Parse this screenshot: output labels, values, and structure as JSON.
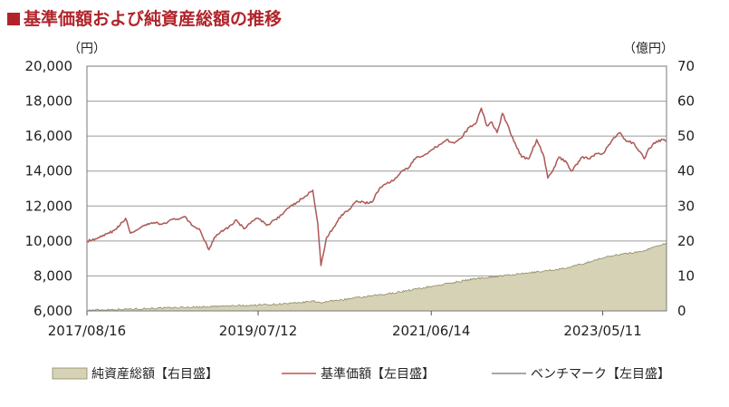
{
  "title": "基準価額および純資産総額の推移",
  "chart_data": {
    "type": "line",
    "left_unit": "（円）",
    "right_unit": "（億円）",
    "y_left": {
      "min": 6000,
      "max": 20000,
      "ticks": [
        "6,000",
        "8,000",
        "10,000",
        "12,000",
        "14,000",
        "16,000",
        "18,000",
        "20,000"
      ]
    },
    "y_right": {
      "min": 0,
      "max": 70,
      "ticks": [
        "0",
        "10",
        "20",
        "30",
        "40",
        "50",
        "60",
        "70"
      ]
    },
    "x_range": [
      "2017-08-16",
      "2024-01-25"
    ],
    "x_ticks": [
      {
        "date": "2017-08-16",
        "label": "2017/08/16"
      },
      {
        "date": "2019-07-12",
        "label": "2019/07/12"
      },
      {
        "date": "2021-06-14",
        "label": "2021/06/14"
      },
      {
        "date": "2023-05-11",
        "label": "2023/05/11"
      }
    ],
    "grid": "horizontal",
    "legend_position": "bottom",
    "series": [
      {
        "name": "純資産総額【右目盛】",
        "axis": "right",
        "kind": "area",
        "color": "#d6d2b6",
        "edge_color": "#8f8a64",
        "points": [
          [
            "2017-08-16",
            0.2
          ],
          [
            "2018-01-15",
            0.5
          ],
          [
            "2018-06-15",
            0.8
          ],
          [
            "2018-12-15",
            1.2
          ],
          [
            "2019-06-15",
            1.6
          ],
          [
            "2019-12-15",
            2.2
          ],
          [
            "2020-02-20",
            2.8
          ],
          [
            "2020-03-20",
            2.4
          ],
          [
            "2020-06-15",
            3.2
          ],
          [
            "2020-12-15",
            4.8
          ],
          [
            "2021-06-15",
            7.0
          ],
          [
            "2021-12-15",
            9.3
          ],
          [
            "2022-06-15",
            10.6
          ],
          [
            "2022-12-15",
            12.2
          ],
          [
            "2023-06-15",
            15.8
          ],
          [
            "2023-10-15",
            17.0
          ],
          [
            "2023-12-15",
            18.5
          ],
          [
            "2024-01-25",
            19.5
          ]
        ]
      },
      {
        "name": "基準価額【左目盛】",
        "axis": "left",
        "kind": "line",
        "color": "#c0504d",
        "points": [
          [
            "2017-08-16",
            10000
          ],
          [
            "2017-09-15",
            10050
          ],
          [
            "2017-10-15",
            10250
          ],
          [
            "2017-11-15",
            10450
          ],
          [
            "2017-12-15",
            10700
          ],
          [
            "2018-01-20",
            11300
          ],
          [
            "2018-02-08",
            10450
          ],
          [
            "2018-03-15",
            10700
          ],
          [
            "2018-04-15",
            10900
          ],
          [
            "2018-05-15",
            11050
          ],
          [
            "2018-06-15",
            10950
          ],
          [
            "2018-07-15",
            11150
          ],
          [
            "2018-08-15",
            11250
          ],
          [
            "2018-09-15",
            11400
          ],
          [
            "2018-10-15",
            10900
          ],
          [
            "2018-11-15",
            10700
          ],
          [
            "2018-12-24",
            9500
          ],
          [
            "2019-01-15",
            10200
          ],
          [
            "2019-02-15",
            10600
          ],
          [
            "2019-03-15",
            10800
          ],
          [
            "2019-04-15",
            11200
          ],
          [
            "2019-05-15",
            10700
          ],
          [
            "2019-06-15",
            11100
          ],
          [
            "2019-07-12",
            11300
          ],
          [
            "2019-08-15",
            10900
          ],
          [
            "2019-09-15",
            11200
          ],
          [
            "2019-10-15",
            11500
          ],
          [
            "2019-11-15",
            11900
          ],
          [
            "2019-12-15",
            12200
          ],
          [
            "2020-01-15",
            12500
          ],
          [
            "2020-02-19",
            12900
          ],
          [
            "2020-03-10",
            11000
          ],
          [
            "2020-03-23",
            8600
          ],
          [
            "2020-04-15",
            10200
          ],
          [
            "2020-05-15",
            10800
          ],
          [
            "2020-06-15",
            11500
          ],
          [
            "2020-07-15",
            11800
          ],
          [
            "2020-08-15",
            12300
          ],
          [
            "2020-09-15",
            12200
          ],
          [
            "2020-10-15",
            12200
          ],
          [
            "2020-11-15",
            13000
          ],
          [
            "2020-12-15",
            13300
          ],
          [
            "2021-01-15",
            13500
          ],
          [
            "2021-02-15",
            14000
          ],
          [
            "2021-03-15",
            14200
          ],
          [
            "2021-04-15",
            14800
          ],
          [
            "2021-05-15",
            14900
          ],
          [
            "2021-06-14",
            15200
          ],
          [
            "2021-07-15",
            15500
          ],
          [
            "2021-08-15",
            15800
          ],
          [
            "2021-09-15",
            15600
          ],
          [
            "2021-10-15",
            15900
          ],
          [
            "2021-11-15",
            16500
          ],
          [
            "2021-12-15",
            16800
          ],
          [
            "2022-01-03",
            17600
          ],
          [
            "2022-01-25",
            16600
          ],
          [
            "2022-02-15",
            16800
          ],
          [
            "2022-03-08",
            16200
          ],
          [
            "2022-03-30",
            17300
          ],
          [
            "2022-04-15",
            16800
          ],
          [
            "2022-05-15",
            15700
          ],
          [
            "2022-06-16",
            14800
          ],
          [
            "2022-07-15",
            14700
          ],
          [
            "2022-08-16",
            15800
          ],
          [
            "2022-09-15",
            14800
          ],
          [
            "2022-09-30",
            13600
          ],
          [
            "2022-10-15",
            13900
          ],
          [
            "2022-11-15",
            14800
          ],
          [
            "2022-12-15",
            14500
          ],
          [
            "2023-01-05",
            14000
          ],
          [
            "2023-02-15",
            14800
          ],
          [
            "2023-03-15",
            14700
          ],
          [
            "2023-04-15",
            15000
          ],
          [
            "2023-05-11",
            15000
          ],
          [
            "2023-06-15",
            15700
          ],
          [
            "2023-07-20",
            16200
          ],
          [
            "2023-08-15",
            15700
          ],
          [
            "2023-09-15",
            15600
          ],
          [
            "2023-10-27",
            14700
          ],
          [
            "2023-11-15",
            15300
          ],
          [
            "2023-12-15",
            15700
          ],
          [
            "2024-01-10",
            15800
          ],
          [
            "2024-01-25",
            15700
          ]
        ]
      },
      {
        "name": "ベンチマーク【左目盛】",
        "axis": "left",
        "kind": "line",
        "color": "#8c8c8c",
        "points": []
      }
    ]
  }
}
